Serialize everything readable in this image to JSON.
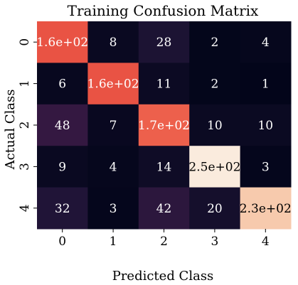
{
  "chart_data": {
    "type": "heatmap",
    "title": "Training Confusion Matrix",
    "xlabel": "Predicted Class",
    "ylabel": "Actual Class",
    "x_categories": [
      "0",
      "1",
      "2",
      "3",
      "4"
    ],
    "y_categories": [
      "0",
      "1",
      "2",
      "3",
      "4"
    ],
    "values": [
      [
        160,
        8,
        28,
        2,
        4
      ],
      [
        6,
        160,
        11,
        2,
        1
      ],
      [
        48,
        7,
        170,
        10,
        10
      ],
      [
        9,
        4,
        14,
        250,
        3
      ],
      [
        32,
        3,
        42,
        20,
        230
      ]
    ],
    "labels": [
      [
        "1.6e+02",
        "8",
        "28",
        "2",
        "4"
      ],
      [
        "6",
        "1.6e+02",
        "11",
        "2",
        "1"
      ],
      [
        "48",
        "7",
        "1.7e+02",
        "10",
        "10"
      ],
      [
        "9",
        "4",
        "14",
        "2.5e+02",
        "3"
      ],
      [
        "32",
        "3",
        "42",
        "20",
        "2.3e+02"
      ]
    ],
    "colormap": "rocket",
    "colorbar": false,
    "grid": false
  }
}
